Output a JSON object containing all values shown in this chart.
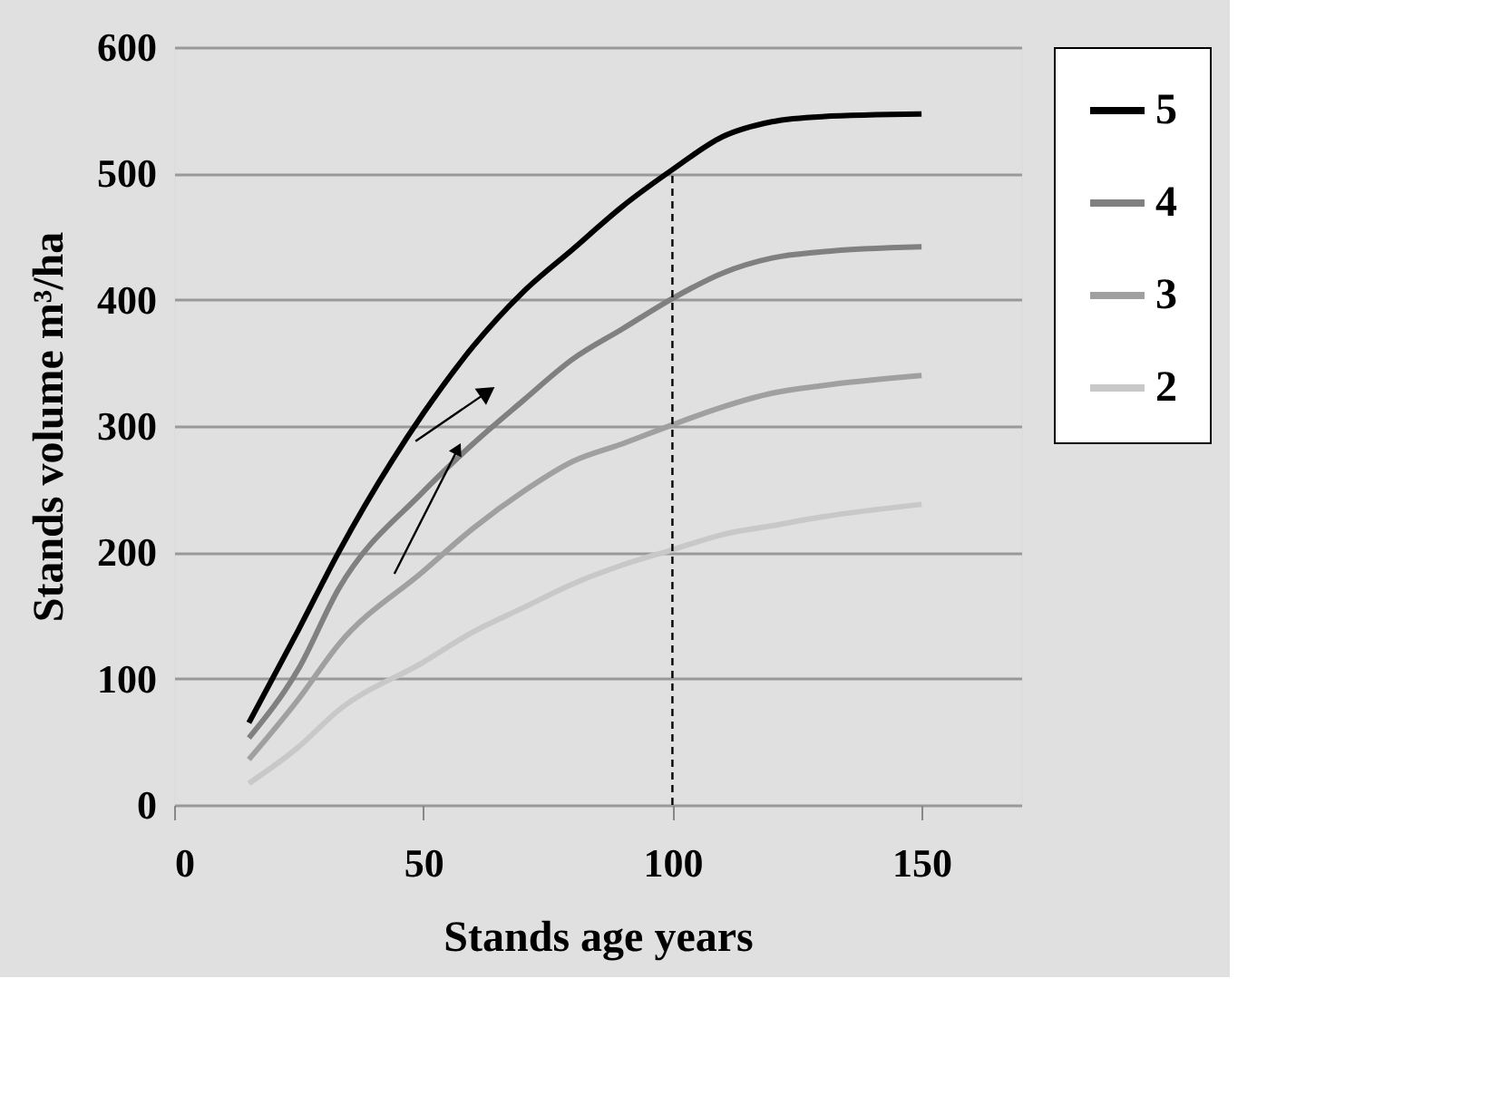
{
  "chart_data": {
    "type": "line",
    "xlabel": "Stands age years",
    "ylabel": "Stands volume m³/ha",
    "x": [
      15,
      25,
      33,
      50,
      60,
      70,
      80,
      90,
      100,
      110,
      120,
      130,
      150
    ],
    "series": [
      {
        "name": "5",
        "color": "#000000",
        "values": [
          65,
          139,
          200,
          310,
          363,
          406,
          440,
          474,
          503,
          529,
          541,
          545,
          547
        ]
      },
      {
        "name": "4",
        "color": "#808080",
        "values": [
          53,
          108,
          171,
          248,
          286,
          320,
          353,
          377,
          401,
          421,
          433,
          438,
          442
        ]
      },
      {
        "name": "3",
        "color": "#a0a0a0",
        "values": [
          36,
          84,
          127,
          185,
          219,
          248,
          272,
          286,
          301,
          315,
          326,
          332,
          340
        ]
      },
      {
        "name": "2",
        "color": "#c8c8c8",
        "values": [
          17,
          46,
          75,
          113,
          137,
          156,
          175,
          190,
          202,
          214,
          221,
          228,
          238
        ]
      }
    ],
    "xlim": [
      0,
      170
    ],
    "xticks": [
      0,
      50,
      100,
      150
    ],
    "ylim": [
      0,
      600
    ],
    "yticks": [
      0,
      100,
      200,
      300,
      400,
      500,
      600
    ],
    "grid": "y",
    "legend": "top right",
    "marker": "none",
    "line_style": "solid",
    "ref_lines": [
      {
        "axis": "x",
        "value": 100,
        "color": "#000000",
        "line_style": "dashed"
      }
    ]
  }
}
